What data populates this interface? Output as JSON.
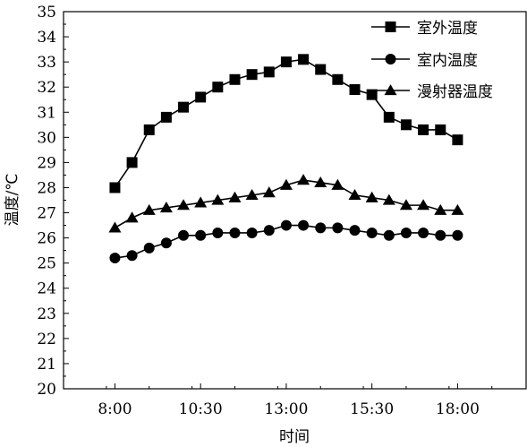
{
  "chart_data": {
    "type": "line",
    "xlabel": "时间",
    "ylabel": "温度/℃",
    "ylim": [
      20,
      35
    ],
    "y_ticks": [
      "20",
      "21",
      "22",
      "23",
      "24",
      "25",
      "26",
      "27",
      "28",
      "29",
      "30",
      "31",
      "32",
      "33",
      "34",
      "35"
    ],
    "x_ticks": [
      {
        "label": "8:00",
        "hour": 8
      },
      {
        "label": "10:30",
        "hour": 10.5
      },
      {
        "label": "13:00",
        "hour": 13
      },
      {
        "label": "15:30",
        "hour": 15.5
      },
      {
        "label": "18:00",
        "hour": 18
      }
    ],
    "xlim_hours": [
      6.5,
      20
    ],
    "x_hours": [
      8,
      8.5,
      9,
      9.5,
      10,
      10.5,
      11,
      11.5,
      12,
      12.5,
      13,
      13.5,
      14,
      14.5,
      15,
      15.5,
      16,
      16.5,
      17,
      17.5,
      18
    ],
    "legend_position": "top-right",
    "grid": false,
    "series": [
      {
        "name": "室外温度",
        "marker": "square",
        "values": [
          28.0,
          29.0,
          30.3,
          30.8,
          31.2,
          31.6,
          32.0,
          32.3,
          32.5,
          32.6,
          33.0,
          33.1,
          32.7,
          32.3,
          31.9,
          31.7,
          30.8,
          30.5,
          30.3,
          30.3,
          29.9
        ]
      },
      {
        "name": "室内温度",
        "marker": "circle",
        "values": [
          25.2,
          25.3,
          25.6,
          25.8,
          26.1,
          26.1,
          26.2,
          26.2,
          26.2,
          26.3,
          26.5,
          26.5,
          26.4,
          26.4,
          26.3,
          26.2,
          26.1,
          26.2,
          26.2,
          26.1,
          26.1
        ]
      },
      {
        "name": "漫射器温度",
        "marker": "triangle",
        "values": [
          26.4,
          26.8,
          27.1,
          27.2,
          27.3,
          27.4,
          27.5,
          27.6,
          27.7,
          27.8,
          28.1,
          28.3,
          28.2,
          28.1,
          27.7,
          27.6,
          27.5,
          27.3,
          27.3,
          27.1,
          27.1
        ]
      }
    ]
  }
}
